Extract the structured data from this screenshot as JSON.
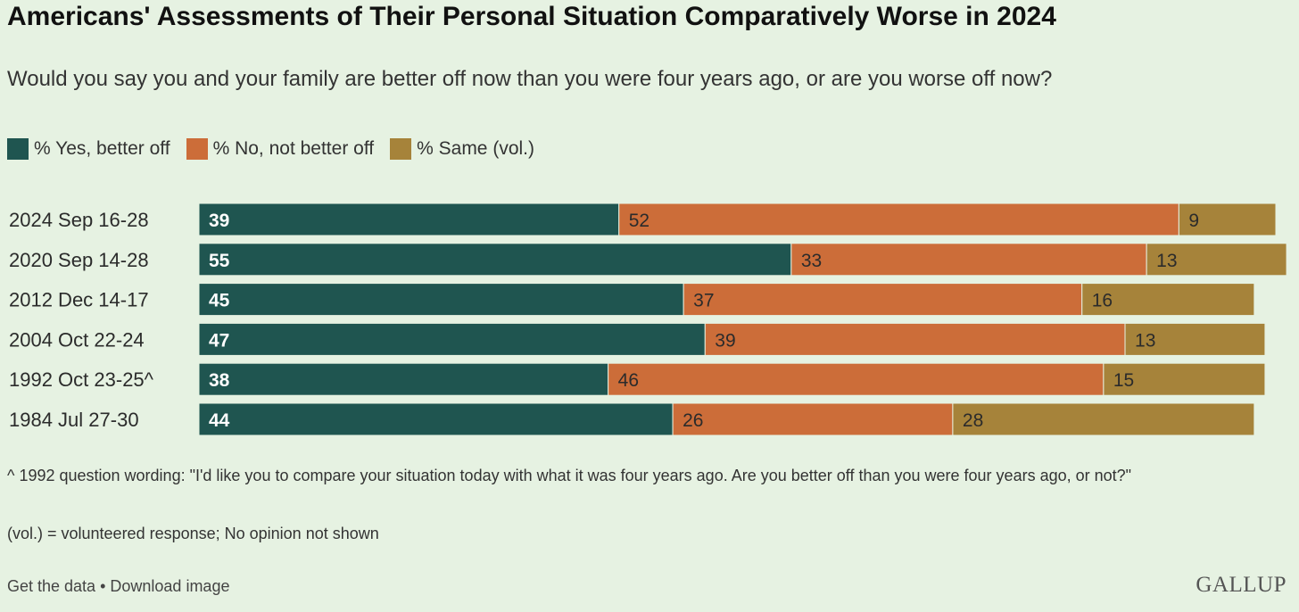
{
  "header": {
    "title": "Americans' Assessments of Their Personal Situation Comparatively Worse in 2024",
    "subtitle": "Would you say you and your family are better off now than you were four years ago, or are you worse off now?"
  },
  "legend": [
    {
      "label": "% Yes, better off",
      "color": "#1f5550"
    },
    {
      "label": "% No, not better off",
      "color": "#cc6d39"
    },
    {
      "label": "% Same (vol.)",
      "color": "#a6833a"
    }
  ],
  "chart_data": {
    "type": "bar",
    "orientation": "horizontal",
    "stacked": true,
    "categories": [
      "2024 Sep 16-28",
      "2020 Sep 14-28",
      "2012 Dec 14-17",
      "2004 Oct 22-24",
      "1992 Oct 23-25^",
      "1984 Jul 27-30"
    ],
    "series": [
      {
        "name": "% Yes, better off",
        "color": "#1f5550",
        "values": [
          39,
          55,
          45,
          47,
          38,
          44
        ]
      },
      {
        "name": "% No, not better off",
        "color": "#cc6d39",
        "values": [
          52,
          33,
          37,
          39,
          46,
          26
        ]
      },
      {
        "name": "% Same (vol.)",
        "color": "#a6833a",
        "values": [
          9,
          13,
          16,
          13,
          15,
          28
        ]
      }
    ],
    "xlim": [
      0,
      100
    ],
    "grid": false,
    "legend_position": "top-left"
  },
  "notes": {
    "question_wording": "^ 1992 question wording: \"I'd like you to compare your situation today with what it was four years ago. Are you better off than you were four years ago, or not?\"",
    "vol": "(vol.) = volunteered response; No opinion not shown"
  },
  "footer": {
    "get_data": "Get the data",
    "separator": " • ",
    "download": "Download image",
    "logo": "GALLUP"
  }
}
